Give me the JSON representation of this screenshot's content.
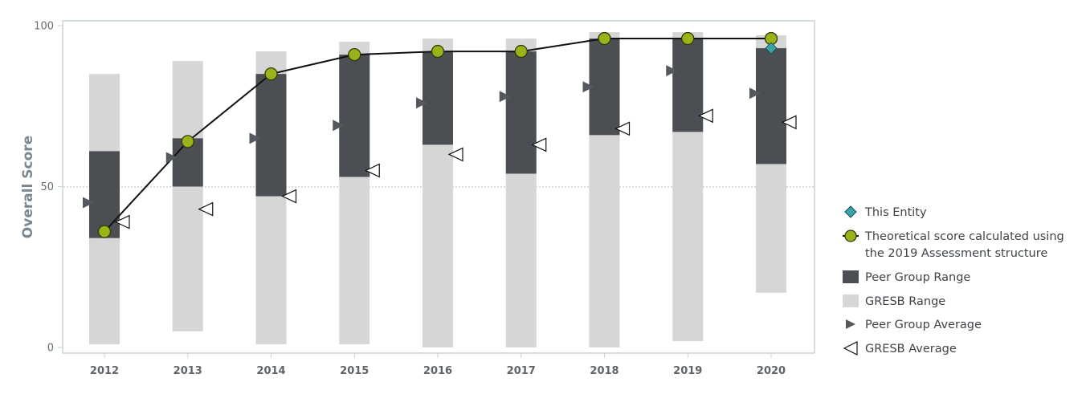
{
  "chart_data": {
    "type": "bar",
    "ylabel": "Overall Score",
    "ylim": [
      0,
      100
    ],
    "yticks": [
      0,
      50,
      100
    ],
    "reference_line": 50,
    "categories": [
      "2012",
      "2013",
      "2014",
      "2015",
      "2016",
      "2017",
      "2018",
      "2019",
      "2020"
    ],
    "gresb_range": [
      [
        1,
        85
      ],
      [
        5,
        89
      ],
      [
        1,
        92
      ],
      [
        1,
        95
      ],
      [
        0,
        96
      ],
      [
        0,
        96
      ],
      [
        0,
        98
      ],
      [
        2,
        98
      ],
      [
        17,
        97
      ]
    ],
    "peer_group_range": [
      [
        34,
        61
      ],
      [
        50,
        65
      ],
      [
        47,
        85
      ],
      [
        53,
        91
      ],
      [
        63,
        92
      ],
      [
        54,
        92
      ],
      [
        66,
        96
      ],
      [
        67,
        96
      ],
      [
        57,
        93
      ]
    ],
    "peer_group_average": [
      45,
      59,
      65,
      69,
      76,
      78,
      81,
      86,
      79
    ],
    "gresb_average": [
      39,
      43,
      47,
      55,
      60,
      63,
      68,
      72,
      70
    ],
    "theoretical_score": [
      36,
      64,
      85,
      91,
      92,
      92,
      96,
      96,
      96
    ],
    "this_entity": [
      null,
      null,
      null,
      null,
      null,
      null,
      null,
      null,
      93
    ],
    "legend": [
      {
        "key": "this_entity",
        "label": "This Entity"
      },
      {
        "key": "theoretical_score",
        "label": "Theoretical score calculated using",
        "label2": "the 2019 Assessment structure"
      },
      {
        "key": "peer_group_range",
        "label": "Peer Group Range"
      },
      {
        "key": "gresb_range",
        "label": "GRESB Range"
      },
      {
        "key": "peer_group_average",
        "label": "Peer Group Average"
      },
      {
        "key": "gresb_average",
        "label": "GRESB Average"
      }
    ],
    "legend_placement": "right",
    "colors": {
      "gresb_range": "#d6d6d6",
      "peer_group_range": "#4b4f54",
      "theoretical_score": "#9bb31a",
      "this_entity": "#3aa3a6",
      "peer_group_average": "#55595e",
      "line": "#111111",
      "frame": "#c5d3da",
      "reference_line": "#b8b8b8"
    }
  }
}
